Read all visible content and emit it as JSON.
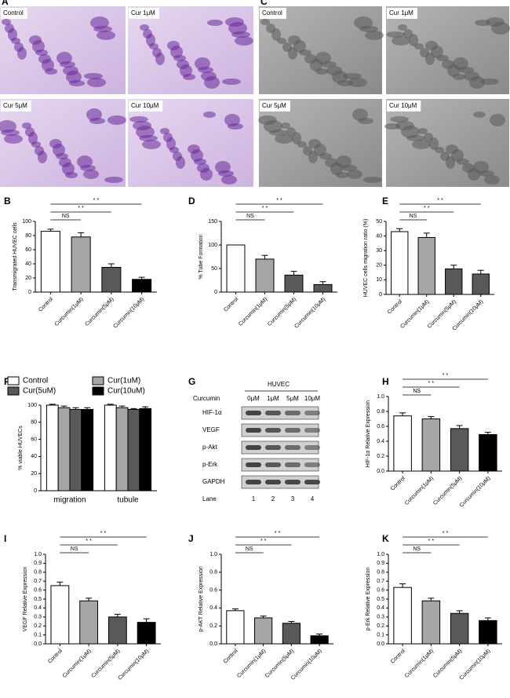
{
  "images": [
    {
      "panel": "A",
      "labels": [
        "Control",
        "Cur 1μM",
        "Cur 5μM",
        "Cur 10μM"
      ]
    },
    {
      "panel": "C",
      "labels": [
        "Control",
        "Cur 1μM",
        "Cur 5μM",
        "Cur 10μM"
      ]
    }
  ],
  "blot": {
    "panel": "G",
    "title": "HUVEC",
    "treatment_label": "Curcumin",
    "doses": [
      "0μM",
      "1μM",
      "5μM",
      "10μM"
    ],
    "rows": [
      "HIF-1α",
      "VEGF",
      "p-Akt",
      "p-Erk",
      "GAPDH"
    ],
    "lane_label": "Lane",
    "lanes": [
      1,
      2,
      3,
      4
    ]
  },
  "chart_data": [
    {
      "type": "bar",
      "panel": "B",
      "ylabel": "Transmigrated HUVEC cells",
      "categories": [
        "Control",
        "Curcumin(1μM)",
        "Curcumin(5μM)",
        "Curcumin(10μM)"
      ],
      "values": [
        86,
        78,
        35,
        18
      ],
      "errors": [
        3,
        6,
        5,
        3
      ],
      "colors": [
        "#ffffff",
        "#a6a6a6",
        "#595959",
        "#000000"
      ],
      "ylim": [
        0,
        100
      ],
      "yticks": [
        0,
        20,
        40,
        60,
        80,
        100
      ],
      "significance": [
        "NS",
        "* *",
        "* *"
      ]
    },
    {
      "type": "bar",
      "panel": "D",
      "ylabel": "% Tube Formation",
      "categories": [
        "Control",
        "Curcumin(1μM)",
        "Curcumin(5μM)",
        "Curcumin(10μM)"
      ],
      "values": [
        100,
        70,
        36,
        16
      ],
      "errors": [
        0,
        8,
        8,
        6
      ],
      "colors": [
        "#ffffff",
        "#a6a6a6",
        "#595959",
        "#595959"
      ],
      "ylim": [
        0,
        150
      ],
      "yticks": [
        0,
        50,
        100,
        150
      ],
      "significance": [
        "NS",
        "* *",
        "* *"
      ]
    },
    {
      "type": "bar",
      "panel": "E",
      "ylabel": "HUVEC cells migration ratio (%)",
      "categories": [
        "Control",
        "Curcumin(1μM)",
        "Curcumin(5μM)",
        "Curcumin(10μM)"
      ],
      "values": [
        43,
        39,
        17.5,
        14
      ],
      "errors": [
        2,
        3,
        2.5,
        2.5
      ],
      "colors": [
        "#ffffff",
        "#a6a6a6",
        "#595959",
        "#595959"
      ],
      "ylim": [
        0,
        50
      ],
      "yticks": [
        0,
        10,
        20,
        30,
        40,
        50
      ],
      "significance": [
        "NS",
        "* *",
        "* *"
      ]
    },
    {
      "type": "grouped_bar",
      "panel": "F",
      "ylabel": "% viable HUVECs",
      "categories": [
        "migration",
        "tubule"
      ],
      "series": [
        {
          "name": "Control",
          "color": "#ffffff",
          "values": [
            100,
            100
          ],
          "errors": [
            1,
            1
          ]
        },
        {
          "name": "Cur(1uM)",
          "color": "#a6a6a6",
          "values": [
            97,
            97
          ],
          "errors": [
            2,
            2
          ]
        },
        {
          "name": "Cur(5uM)",
          "color": "#595959",
          "values": [
            95,
            95
          ],
          "errors": [
            2,
            1
          ]
        },
        {
          "name": "Cur(10uM)",
          "color": "#000000",
          "values": [
            95,
            96
          ],
          "errors": [
            2,
            2
          ]
        }
      ],
      "ylim": [
        0,
        100
      ],
      "yticks": [
        0,
        20,
        40,
        60,
        80,
        100
      ]
    },
    {
      "type": "bar",
      "panel": "H",
      "ylabel": "HIF-1α  Relative Expression",
      "categories": [
        "Control",
        "Curcumin(1μM)",
        "Curcumin(5μM)",
        "Curcumin(10μM)"
      ],
      "values": [
        0.74,
        0.7,
        0.57,
        0.49
      ],
      "errors": [
        0.04,
        0.03,
        0.04,
        0.03
      ],
      "colors": [
        "#ffffff",
        "#a6a6a6",
        "#595959",
        "#000000"
      ],
      "ylim": [
        0,
        1.0
      ],
      "yticks": [
        {
          "value": 0,
          "label": "0.0"
        },
        0.2,
        0.4,
        0.6,
        0.8,
        {
          "value": 1,
          "label": "1.0"
        }
      ],
      "significance": [
        "NS",
        "* *",
        "* *"
      ]
    },
    {
      "type": "bar",
      "panel": "I",
      "ylabel": "VEGF Relative Expression",
      "categories": [
        "Control",
        "Curcumin(1μM)",
        "Curcumin(5μM)",
        "Curcumin(10μM)"
      ],
      "values": [
        0.65,
        0.48,
        0.3,
        0.24
      ],
      "errors": [
        0.04,
        0.03,
        0.03,
        0.04
      ],
      "colors": [
        "#ffffff",
        "#a6a6a6",
        "#595959",
        "#000000"
      ],
      "ylim": [
        0,
        1.0
      ],
      "yticks": [
        {
          "value": 0,
          "label": "0.0"
        },
        0.1,
        0.2,
        0.3,
        0.4,
        0.5,
        0.6,
        0.7,
        0.8,
        0.9,
        {
          "value": 1,
          "label": "1.0"
        }
      ],
      "significance": [
        "NS",
        "* *",
        "* *"
      ]
    },
    {
      "type": "bar",
      "panel": "J",
      "ylabel": "p-AKT Relative Expression",
      "categories": [
        "Control",
        "Curcumin(1μM)",
        "Curcumin(5μM)",
        "Curcumin(10μM)"
      ],
      "values": [
        0.37,
        0.29,
        0.23,
        0.09
      ],
      "errors": [
        0.02,
        0.02,
        0.02,
        0.02
      ],
      "colors": [
        "#ffffff",
        "#a6a6a6",
        "#595959",
        "#000000"
      ],
      "ylim": [
        0,
        1.0
      ],
      "yticks": [
        {
          "value": 0,
          "label": "0.0"
        },
        0.2,
        0.4,
        0.6,
        0.8,
        {
          "value": 1,
          "label": "1.0"
        }
      ],
      "significance": [
        "NS",
        "* *",
        "* *"
      ]
    },
    {
      "type": "bar",
      "panel": "K",
      "ylabel": "p-Erk Relative Expression",
      "categories": [
        "Control",
        "Curcumin(1μM)",
        "Curcumin(5μM)",
        "Curcumin(10μM)"
      ],
      "values": [
        0.63,
        0.48,
        0.34,
        0.26
      ],
      "errors": [
        0.04,
        0.03,
        0.03,
        0.03
      ],
      "colors": [
        "#ffffff",
        "#a6a6a6",
        "#595959",
        "#000000"
      ],
      "ylim": [
        0,
        1.0
      ],
      "yticks": [
        {
          "value": 0,
          "label": "0.0"
        },
        0.1,
        0.2,
        0.3,
        0.4,
        0.5,
        0.6,
        0.7,
        0.8,
        0.9,
        {
          "value": 1,
          "label": "1.0"
        }
      ],
      "significance": [
        "NS",
        "* *",
        "* *"
      ]
    }
  ]
}
